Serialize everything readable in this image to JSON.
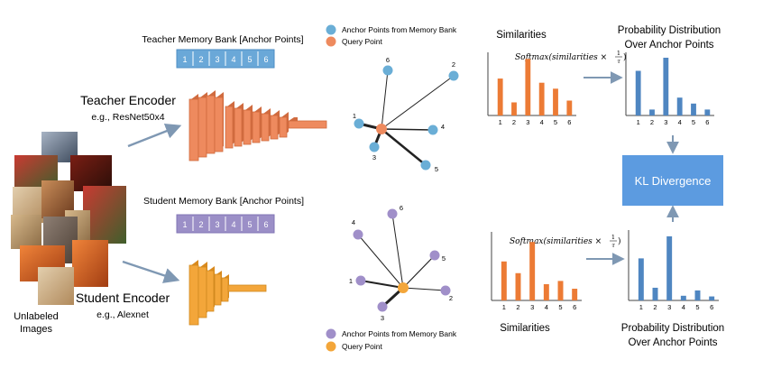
{
  "inputs": {
    "caption_line1": "Unlabeled",
    "caption_line2": "Images"
  },
  "teacher": {
    "memory_bank_title": "Teacher Memory Bank [Anchor Points]",
    "bank_cells": [
      "1",
      "2",
      "3",
      "4",
      "5",
      "6"
    ],
    "encoder_title": "Teacher Encoder",
    "encoder_subtitle": "e.g., ResNet50x4"
  },
  "student": {
    "memory_bank_title": "Student Memory Bank [Anchor Points]",
    "bank_cells": [
      "1",
      "2",
      "3",
      "4",
      "5",
      "6"
    ],
    "encoder_title": "Student Encoder",
    "encoder_subtitle": "e.g., Alexnet"
  },
  "legend_top": {
    "anchor_label": "Anchor Points from Memory Bank",
    "query_label": "Query Point"
  },
  "legend_bottom": {
    "anchor_label": "Anchor Points from Memory Bank",
    "query_label": "Query Point"
  },
  "graph_top": {
    "node_labels": [
      "1",
      "2",
      "3",
      "4",
      "5",
      "6"
    ]
  },
  "graph_bottom": {
    "node_labels": [
      "1",
      "2",
      "3",
      "4",
      "5",
      "6"
    ]
  },
  "formula": {
    "prefix": "Softmax(similarities × ",
    "num": "1",
    "den": "τ",
    "suffix": ")"
  },
  "sim_top_title": "Similarities",
  "sim_bottom_title": "Similarities",
  "prob_top_title_line1": "Probability Distribution",
  "prob_top_title_line2": "Over Anchor Points",
  "prob_bottom_title_line1": "Probability Distribution",
  "prob_bottom_title_line2": "Over Anchor Points",
  "kl_label": "KL Divergence",
  "colors": {
    "teacher_bank": "#6aa8d8",
    "student_bank": "#9b8fc7",
    "teacher_encoder": "#ee8a5e",
    "student_encoder": "#f3a63a",
    "anchor_top": "#6aaed6",
    "anchor_bottom": "#a08fc9",
    "query": "#ee8a5e",
    "bar_orange": "#ec7b35",
    "bar_blue": "#4f86c1",
    "kl_box": "#5c9be0",
    "arrow": "#8aa4bd"
  },
  "chart_data": [
    {
      "type": "bar",
      "title": "Similarities",
      "categories": [
        "1",
        "2",
        "3",
        "4",
        "5",
        "6"
      ],
      "values": [
        0.62,
        0.22,
        0.95,
        0.55,
        0.45,
        0.25
      ],
      "ylim": [
        0,
        1
      ]
    },
    {
      "type": "bar",
      "title": "Probability Distribution Over Anchor Points",
      "categories": [
        "1",
        "2",
        "3",
        "4",
        "5",
        "6"
      ],
      "values": [
        0.75,
        0.1,
        0.97,
        0.3,
        0.2,
        0.1
      ],
      "ylim": [
        0,
        1
      ]
    },
    {
      "type": "bar",
      "title": "Similarities",
      "categories": [
        "1",
        "2",
        "3",
        "4",
        "5",
        "6"
      ],
      "values": [
        0.6,
        0.42,
        0.9,
        0.25,
        0.3,
        0.18
      ],
      "ylim": [
        0,
        1
      ]
    },
    {
      "type": "bar",
      "title": "Probability Distribution Over Anchor Points",
      "categories": [
        "1",
        "2",
        "3",
        "4",
        "5",
        "6"
      ],
      "values": [
        0.63,
        0.19,
        0.96,
        0.07,
        0.15,
        0.06
      ],
      "ylim": [
        0,
        1
      ]
    }
  ]
}
